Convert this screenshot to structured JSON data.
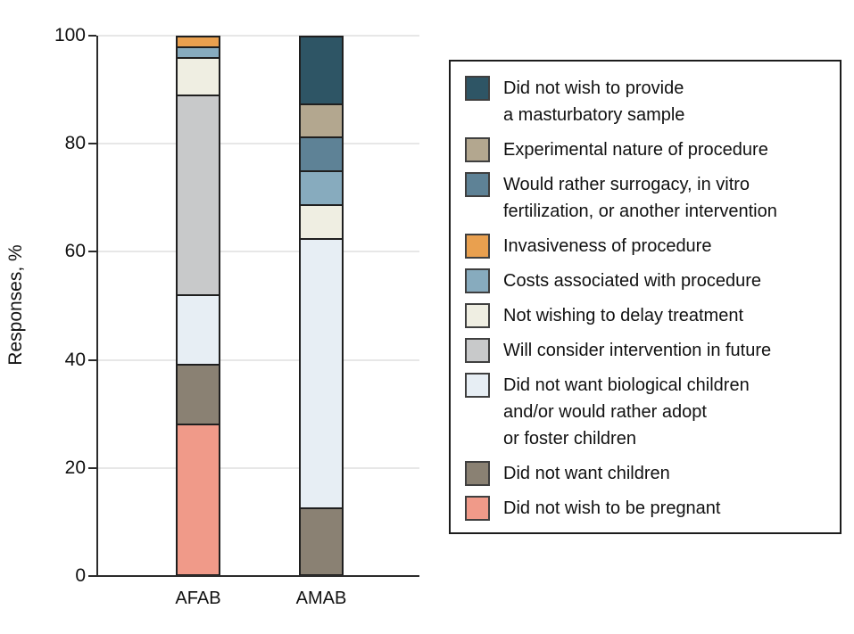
{
  "chart_data": {
    "type": "bar",
    "stacked": true,
    "categories": [
      "AFAB",
      "AMAB"
    ],
    "ylabel": "Responses, %",
    "ylim": [
      0,
      100
    ],
    "yticks": [
      0,
      20,
      40,
      60,
      80,
      100
    ],
    "ytick_labels": [
      "0",
      "20",
      "40",
      "60",
      "80",
      "100"
    ],
    "grid": "horizontal",
    "legend_position": "right",
    "legend_order": "reverse-of-series",
    "axis_color": "#2b2b2b",
    "gridline_color": "#e7e7e7",
    "segment_border_color": "#1f1f1f",
    "series": [
      {
        "name": "Did not wish to be pregnant",
        "color": "#F09A89",
        "values": [
          28,
          0
        ],
        "legend_lines": [
          "Did not wish to be pregnant"
        ]
      },
      {
        "name": "Did not want children",
        "color": "#8A8173",
        "values": [
          11,
          12.5
        ],
        "legend_lines": [
          "Did not want children"
        ]
      },
      {
        "name": "Did not want biological children and/or would rather adopt or foster children",
        "color": "#E7EEF4",
        "values": [
          13,
          50
        ],
        "legend_lines": [
          "Did not want biological children",
          "and/or would rather adopt",
          "or foster children"
        ]
      },
      {
        "name": "Will consider intervention in future",
        "color": "#C8C9CA",
        "values": [
          37,
          0
        ],
        "legend_lines": [
          "Will consider intervention in future"
        ]
      },
      {
        "name": "Not wishing to delay treatment",
        "color": "#EFEEE2",
        "values": [
          7,
          6.25
        ],
        "legend_lines": [
          "Not wishing to delay treatment"
        ]
      },
      {
        "name": "Costs associated with procedure",
        "color": "#87ABBE",
        "values": [
          2,
          6.25
        ],
        "legend_lines": [
          "Costs associated with procedure"
        ]
      },
      {
        "name": "Invasiveness of procedure",
        "color": "#E9A04F",
        "values": [
          2,
          0
        ],
        "legend_lines": [
          "Invasiveness of procedure"
        ]
      },
      {
        "name": "Would rather surrogacy, in vitro fertilization, or another intervention",
        "color": "#5E8296",
        "values": [
          0,
          6.25
        ],
        "legend_lines": [
          "Would rather surrogacy, in vitro",
          "fertilization, or another intervention"
        ]
      },
      {
        "name": "Experimental nature of procedure",
        "color": "#B3A78F",
        "values": [
          0,
          6.25
        ],
        "legend_lines": [
          "Experimental nature of procedure"
        ]
      },
      {
        "name": "Did not wish to provide a masturbatory sample",
        "color": "#2E5565",
        "values": [
          0,
          12.5
        ],
        "legend_lines": [
          "Did not wish to provide",
          "a masturbatory sample"
        ]
      }
    ]
  }
}
